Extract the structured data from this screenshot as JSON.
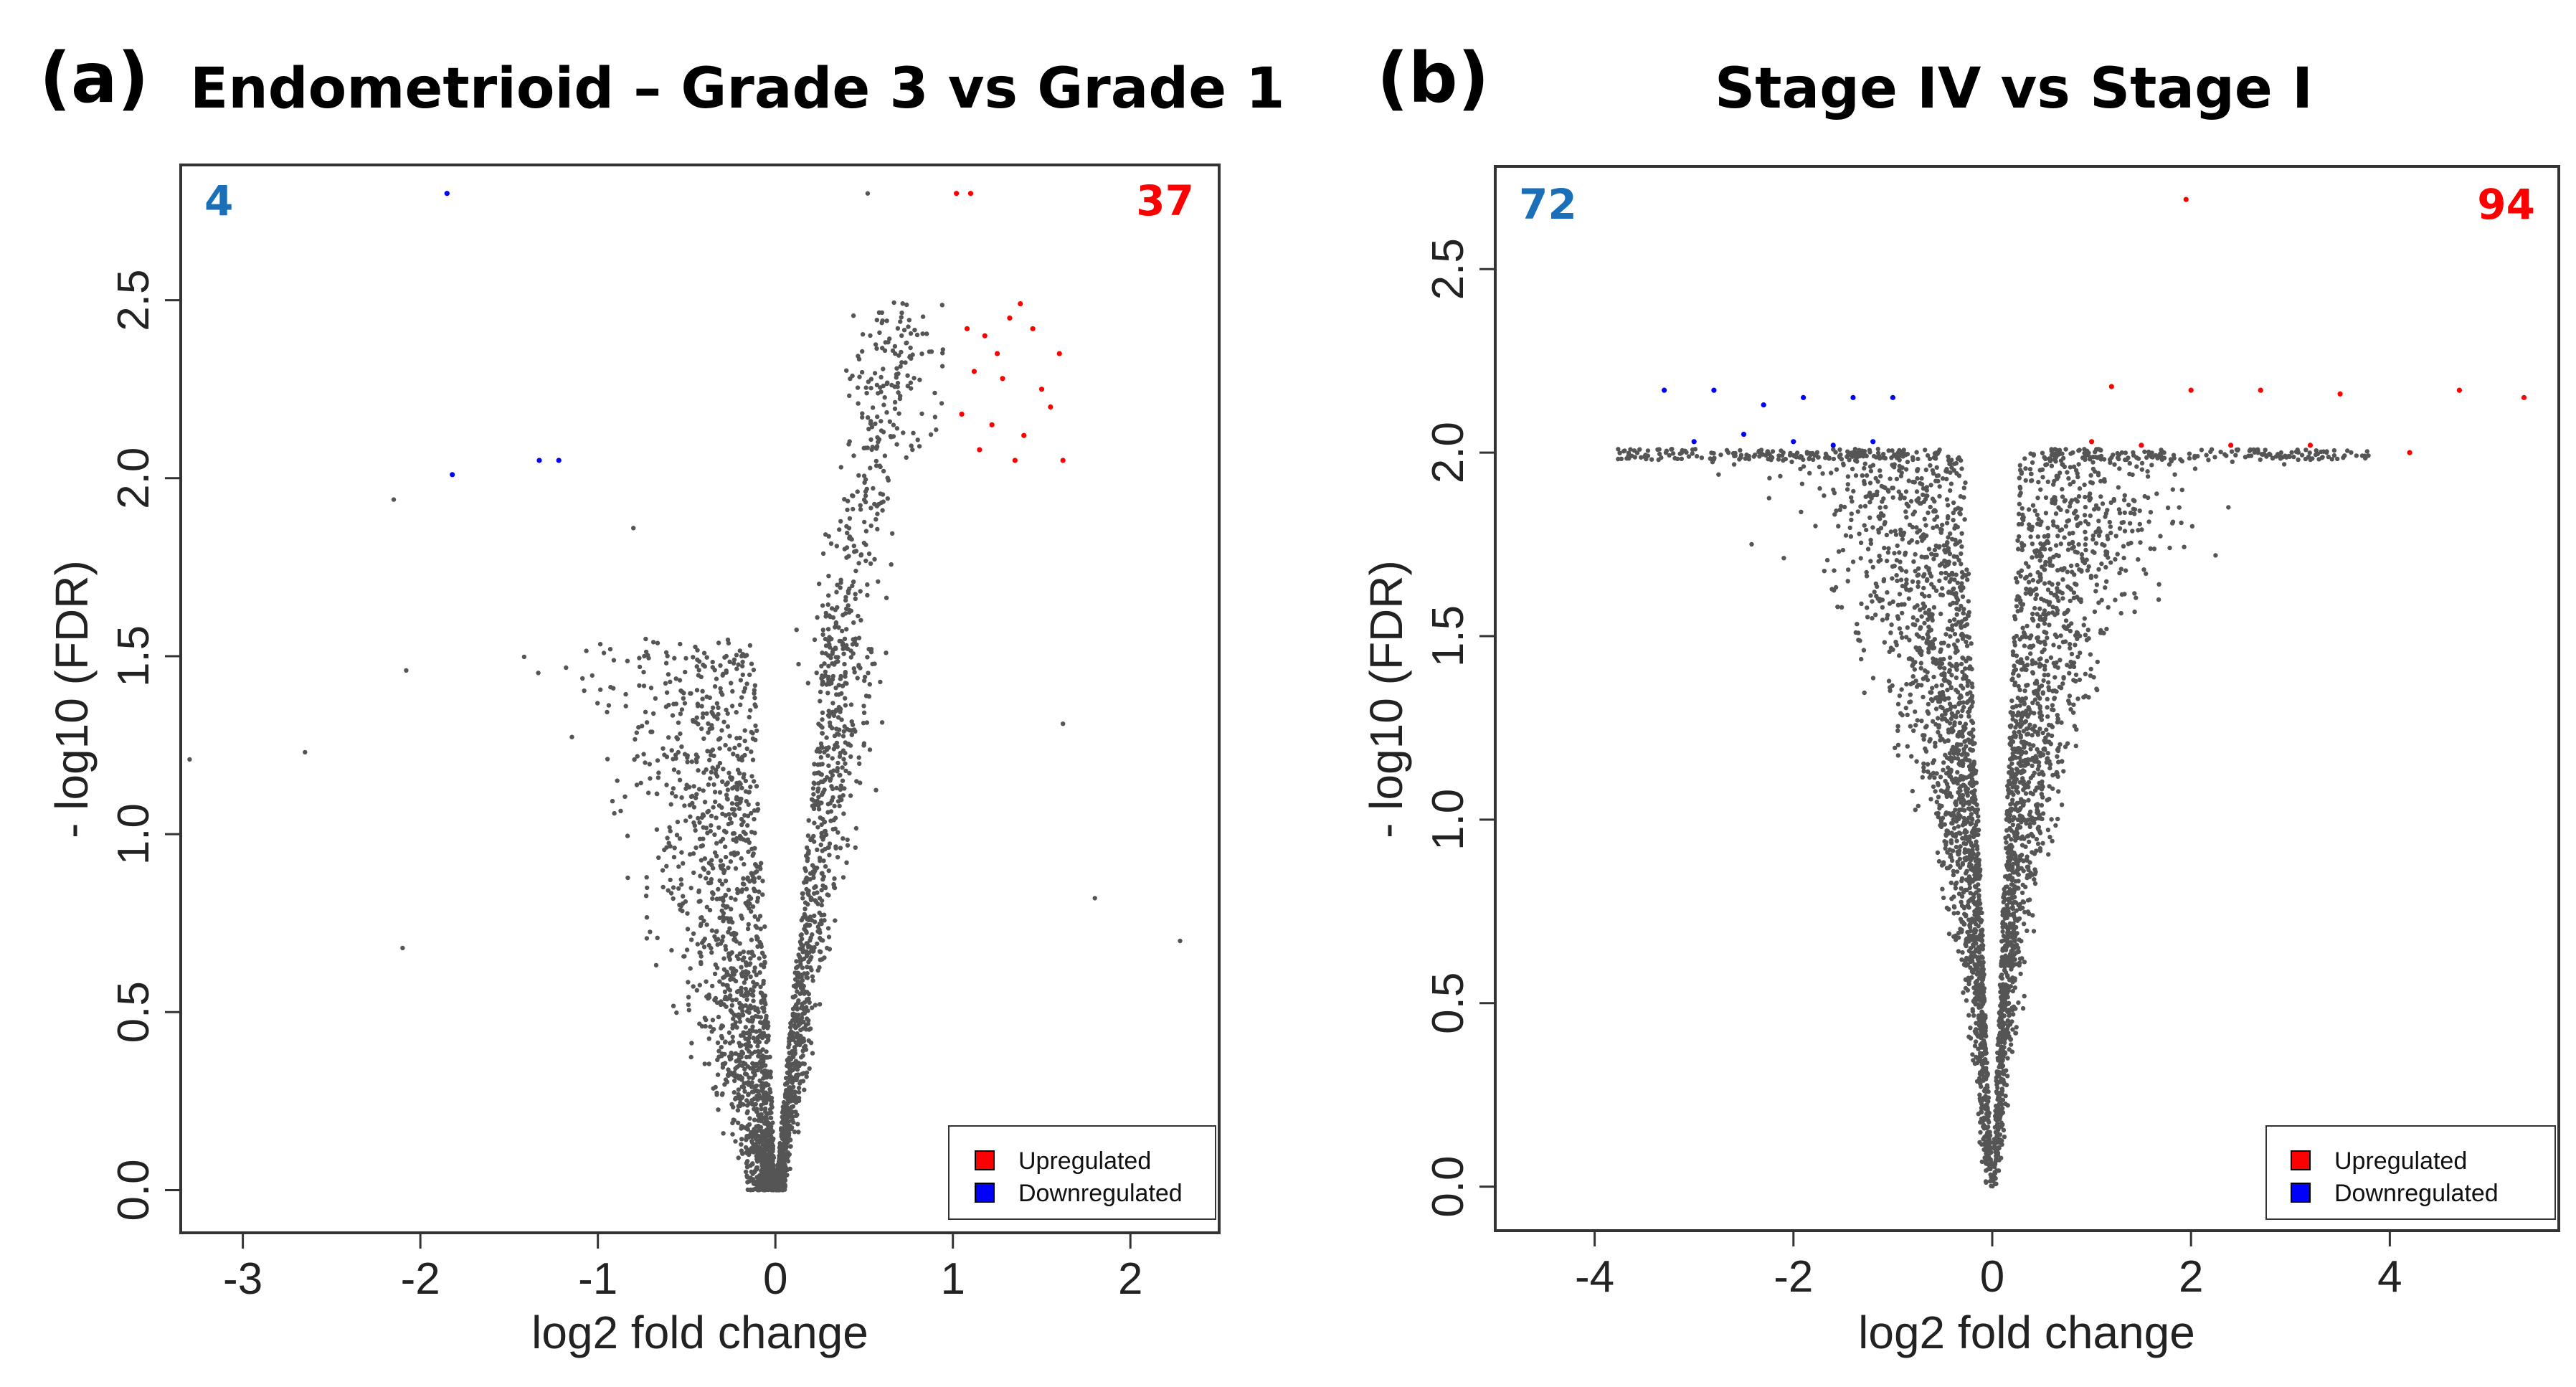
{
  "colors": {
    "up": "#ff0000",
    "down": "#0000ff",
    "ns": "#555555",
    "count_up": "#ff0000",
    "count_down": "#1a6fb8"
  },
  "chart_data": [
    {
      "type": "scatter",
      "panel_label": "(a)",
      "title": "Endometrioid – Grade 3 vs Grade 1",
      "xlabel": "log2 fold change",
      "ylabel": "- log10 (FDR)",
      "xlim": [
        -3.35,
        2.5
      ],
      "ylim": [
        -0.12,
        2.88
      ],
      "xticks": [
        -3,
        -2,
        -1,
        0,
        1,
        2
      ],
      "yticks": [
        0.0,
        0.5,
        1.0,
        1.5,
        2.0,
        2.5
      ],
      "down_count": "4",
      "up_count": "37",
      "legend": [
        "Upregulated",
        "Downregulated"
      ],
      "downregulated_points": [
        [
          -1.85,
          2.8
        ],
        [
          -1.82,
          2.01
        ],
        [
          -1.33,
          2.05
        ],
        [
          -1.22,
          2.05
        ]
      ],
      "upregulated_points_sample": [
        [
          1.02,
          2.8
        ],
        [
          1.1,
          2.8
        ],
        [
          1.08,
          2.42
        ],
        [
          1.18,
          2.4
        ],
        [
          1.32,
          2.45
        ],
        [
          1.45,
          2.42
        ],
        [
          1.6,
          2.35
        ],
        [
          1.12,
          2.3
        ],
        [
          1.28,
          2.28
        ],
        [
          1.5,
          2.25
        ],
        [
          1.05,
          2.18
        ],
        [
          1.22,
          2.15
        ],
        [
          1.4,
          2.12
        ],
        [
          1.15,
          2.08
        ],
        [
          1.35,
          2.05
        ],
        [
          1.62,
          2.05
        ],
        [
          1.38,
          2.49
        ],
        [
          1.25,
          2.35
        ],
        [
          1.55,
          2.2
        ]
      ],
      "ns_description": "about 3000 grey points in a V shape centered at log2FC 0"
    },
    {
      "type": "scatter",
      "panel_label": "(b)",
      "title": "Stage IV vs Stage I",
      "xlabel": "log2 fold change",
      "ylabel": "- log10 (FDR)",
      "xlim": [
        -5.0,
        5.7
      ],
      "ylim": [
        -0.12,
        2.78
      ],
      "xticks": [
        -4,
        -2,
        0,
        2,
        4
      ],
      "yticks": [
        0.0,
        0.5,
        1.0,
        1.5,
        2.0,
        2.5
      ],
      "down_count": "72",
      "up_count": "94",
      "legend": [
        "Upregulated",
        "Downregulated"
      ],
      "downregulated_points_sample": [
        [
          -3.3,
          2.17
        ],
        [
          -2.8,
          2.17
        ],
        [
          -2.3,
          2.13
        ],
        [
          -1.9,
          2.15
        ],
        [
          -1.4,
          2.15
        ],
        [
          -1.0,
          2.15
        ],
        [
          -3.0,
          2.03
        ],
        [
          -2.5,
          2.05
        ],
        [
          -2.0,
          2.03
        ],
        [
          -1.6,
          2.02
        ],
        [
          -1.2,
          2.03
        ]
      ],
      "upregulated_points_sample": [
        [
          1.95,
          2.69
        ],
        [
          1.2,
          2.18
        ],
        [
          2.0,
          2.17
        ],
        [
          2.7,
          2.17
        ],
        [
          3.5,
          2.16
        ],
        [
          4.7,
          2.17
        ],
        [
          5.35,
          2.15
        ],
        [
          1.0,
          2.03
        ],
        [
          1.5,
          2.02
        ],
        [
          2.4,
          2.02
        ],
        [
          3.2,
          2.02
        ],
        [
          4.2,
          2.0
        ]
      ],
      "ns_description": "about 3500 grey points in a V shape, plateau at -log10(FDR) = 2.0"
    }
  ]
}
